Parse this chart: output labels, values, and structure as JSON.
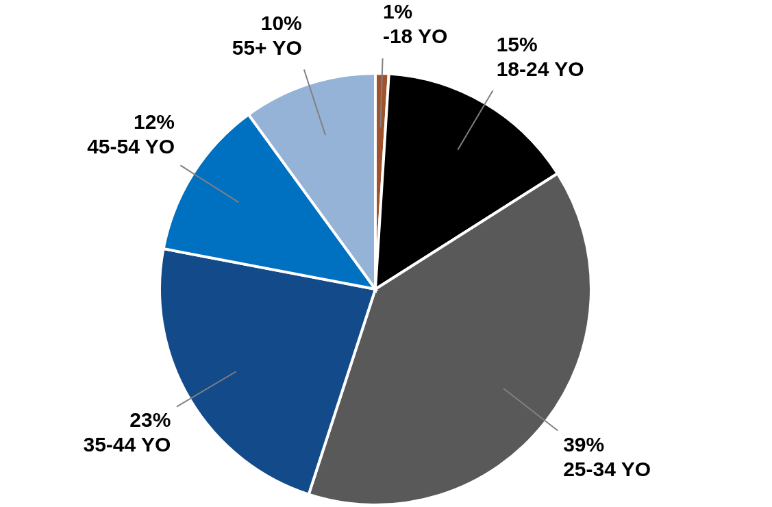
{
  "chart_data": {
    "type": "pie",
    "categories": [
      "-18 YO",
      "18-24 YO",
      "25-34 YO",
      "35-44 YO",
      "45-54 YO",
      "55+ YO"
    ],
    "values": [
      1,
      15,
      39,
      23,
      12,
      10
    ],
    "colors": [
      "#a0522d",
      "#000000",
      "#595959",
      "#124a8a",
      "#0070c0",
      "#95b3d7"
    ],
    "value_labels": [
      "1%",
      "15%",
      "39%",
      "23%",
      "12%",
      "10%"
    ]
  }
}
